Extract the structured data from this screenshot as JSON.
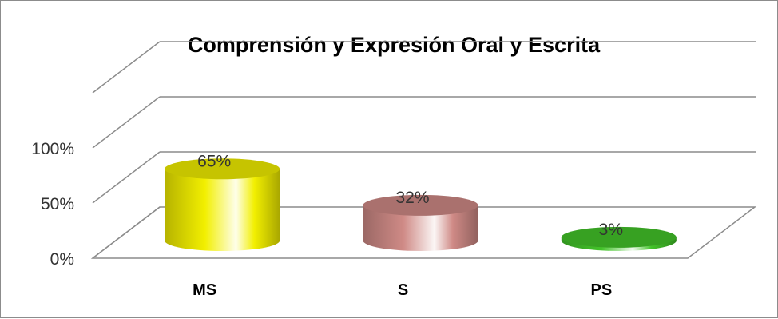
{
  "chart_data": {
    "type": "bar",
    "title": "Comprensión y Expresión Oral y Escrita",
    "categories": [
      "MS",
      "S",
      "PS"
    ],
    "values": [
      65,
      32,
      3
    ],
    "data_labels": [
      "65%",
      "32%",
      "3%"
    ],
    "ylim": [
      0,
      100
    ],
    "yticks": [
      0,
      50,
      100
    ],
    "ytick_labels": [
      "0%",
      "50%",
      "100%"
    ],
    "xlabel": "",
    "ylabel": "",
    "grid": true,
    "legend": "none",
    "bar_shape": "3d-cylinder",
    "colors": [
      "#f2ef00",
      "#cf8a86",
      "#43c42a"
    ]
  }
}
